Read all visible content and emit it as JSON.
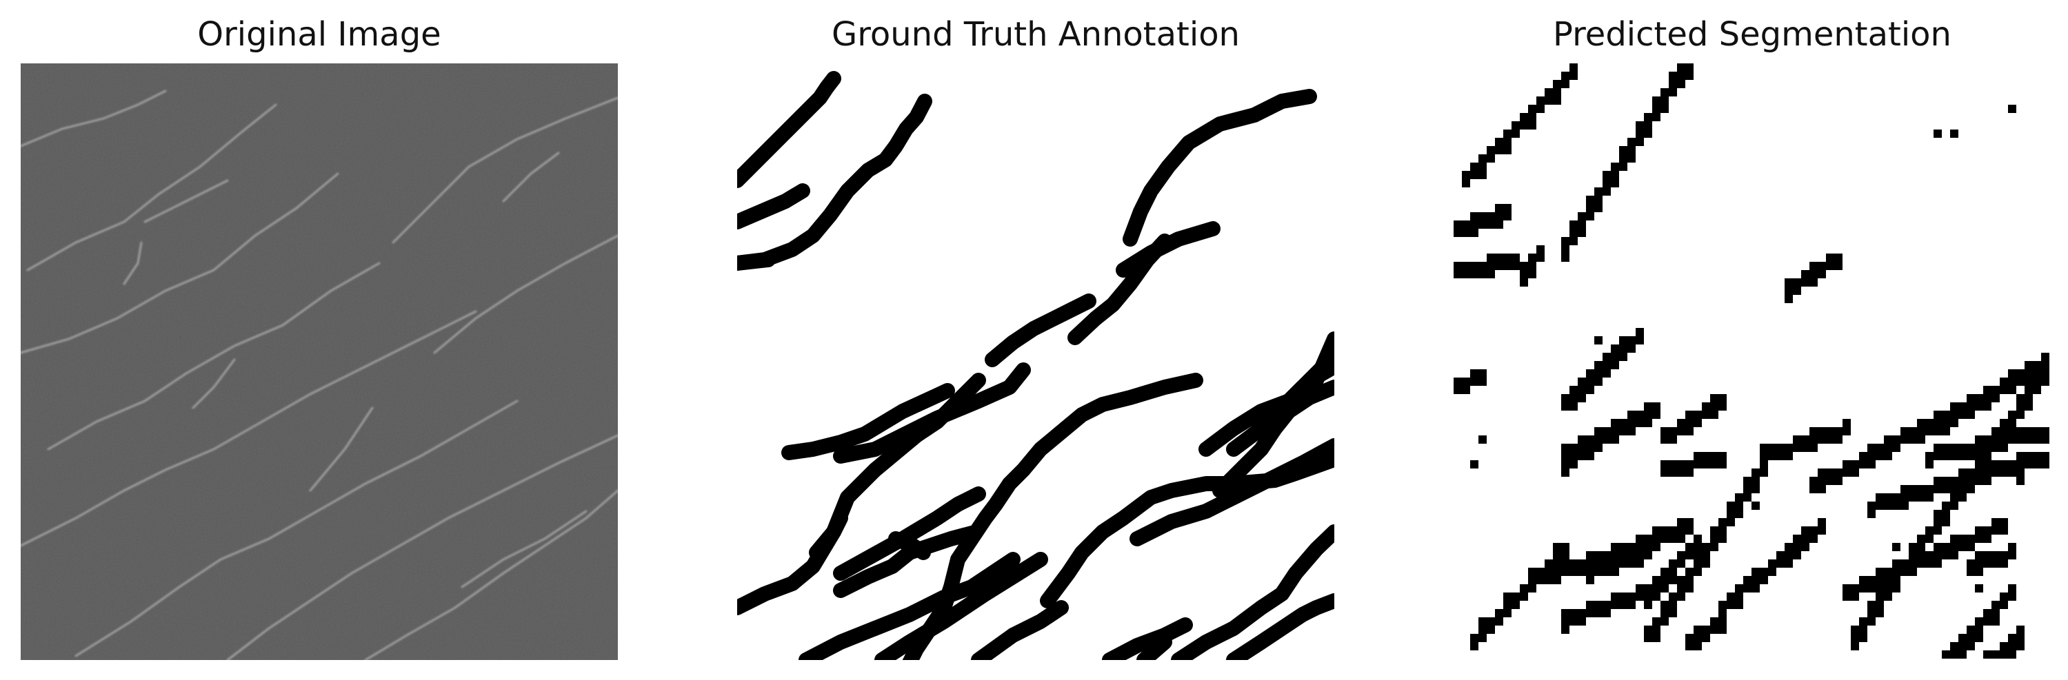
{
  "figure": {
    "panels": [
      {
        "title": "Original Image"
      },
      {
        "title": "Ground Truth Annotation"
      },
      {
        "title": "Predicted Segmentation"
      }
    ]
  }
}
